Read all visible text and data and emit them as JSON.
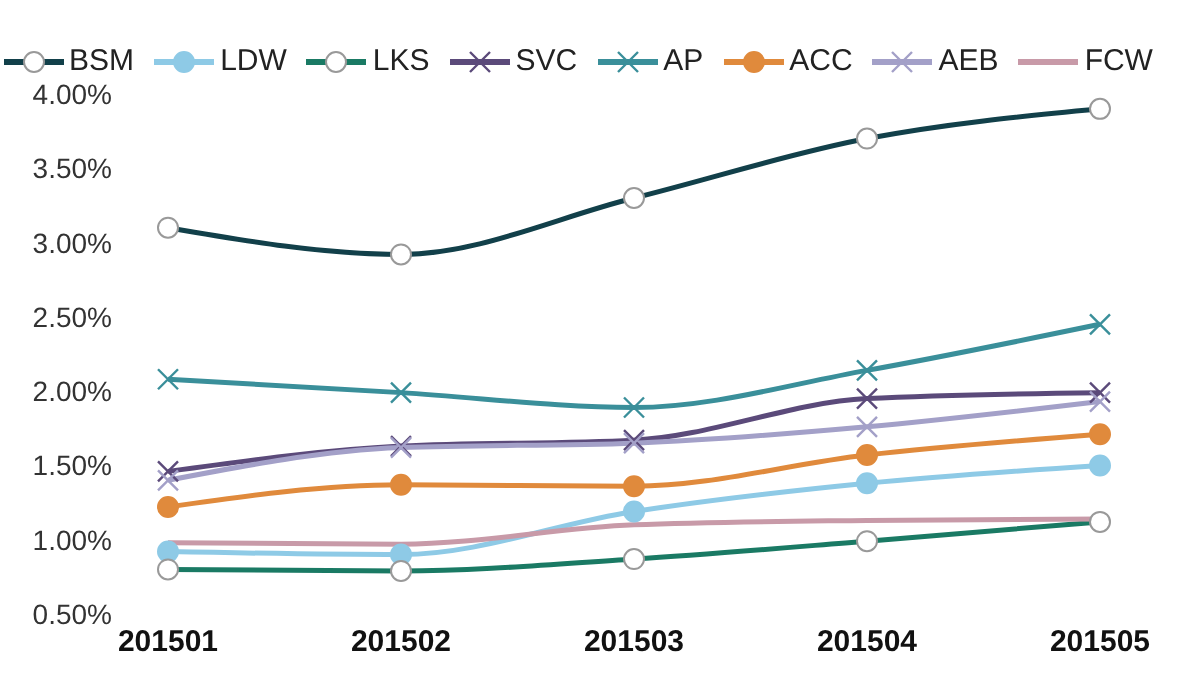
{
  "chart_data": {
    "type": "line",
    "categories": [
      "201501",
      "201502",
      "201503",
      "201504",
      "201505"
    ],
    "series": [
      {
        "name": "BSM",
        "color": "#12404a",
        "marker": "circle",
        "values": [
          3.1,
          2.92,
          3.3,
          3.7,
          3.9
        ]
      },
      {
        "name": "LDW",
        "color": "#8ecae6",
        "marker": "circle",
        "values": [
          0.92,
          0.9,
          1.19,
          1.38,
          1.5
        ]
      },
      {
        "name": "LKS",
        "color": "#1a7a64",
        "marker": "circle",
        "values": [
          0.8,
          0.79,
          0.87,
          0.99,
          1.12
        ]
      },
      {
        "name": "SVC",
        "color": "#5b4a7a",
        "marker": "cross",
        "values": [
          1.46,
          1.63,
          1.67,
          1.95,
          1.99
        ]
      },
      {
        "name": "AP",
        "color": "#3a8f9a",
        "marker": "cross",
        "values": [
          2.08,
          1.99,
          1.89,
          2.14,
          2.45
        ]
      },
      {
        "name": "ACC",
        "color": "#e08a3c",
        "marker": "circle",
        "values": [
          1.22,
          1.37,
          1.36,
          1.57,
          1.71
        ]
      },
      {
        "name": "AEB",
        "color": "#a3a0c8",
        "marker": "cross",
        "values": [
          1.4,
          1.62,
          1.65,
          1.76,
          1.93
        ]
      },
      {
        "name": "FCW",
        "color": "#c89aa8",
        "marker": "none",
        "values": [
          0.98,
          0.97,
          1.1,
          1.13,
          1.14
        ]
      }
    ],
    "ylim": [
      0.5,
      4
    ],
    "yticks": [
      {
        "value": 0.5,
        "label": "0.50%"
      },
      {
        "value": 1,
        "label": "1.00%"
      },
      {
        "value": 1.5,
        "label": "1.50%"
      },
      {
        "value": 2,
        "label": "2.00%"
      },
      {
        "value": 2.5,
        "label": "2.50%"
      },
      {
        "value": 3,
        "label": "3.00%"
      },
      {
        "value": 3.5,
        "label": "3.50%"
      },
      {
        "value": 4,
        "label": "4.00%"
      }
    ],
    "grid": false,
    "legend": "top",
    "line_style": "solid"
  }
}
